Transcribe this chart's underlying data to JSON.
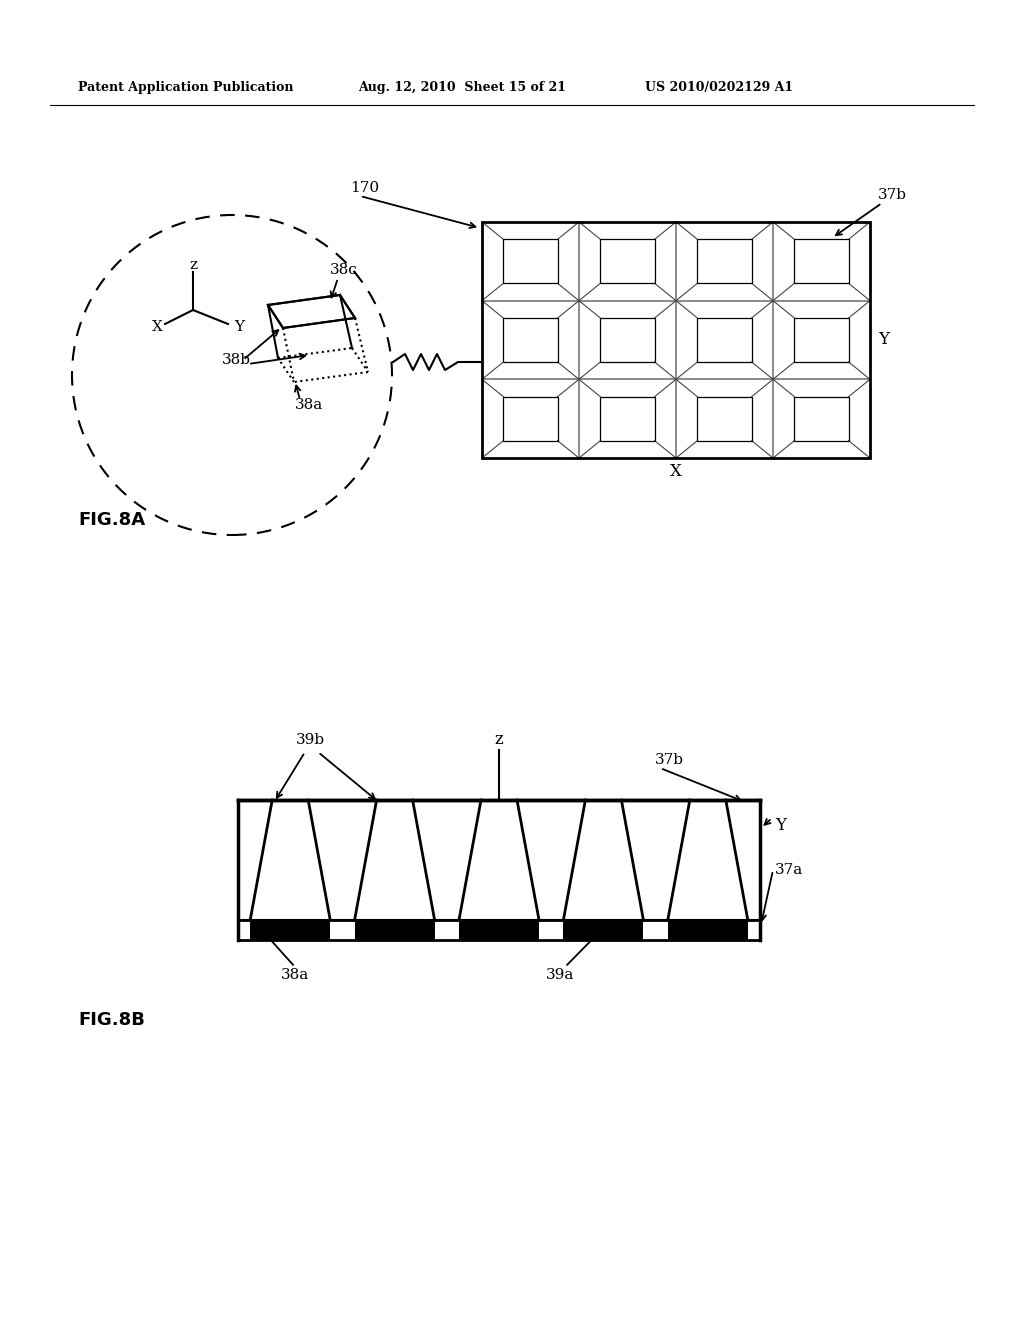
{
  "header_left": "Patent Application Publication",
  "header_mid": "Aug. 12, 2010  Sheet 15 of 21",
  "header_right": "US 2010/0202129 A1",
  "fig8a_label": "FIG.8A",
  "fig8b_label": "FIG.8B",
  "bg_color": "#ffffff"
}
